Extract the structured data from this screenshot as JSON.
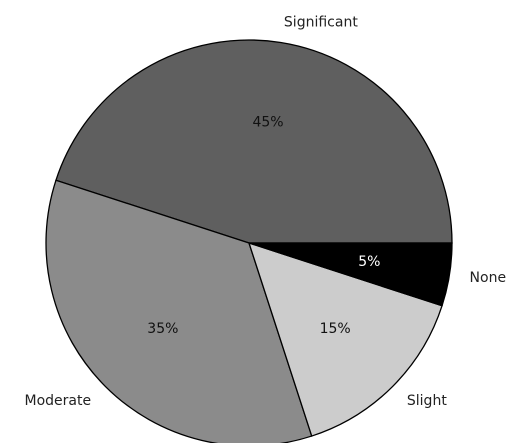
{
  "chart_data": {
    "type": "pie",
    "title": "",
    "categories": [
      "Significant",
      "Moderate",
      "Slight",
      "None"
    ],
    "values": [
      45,
      35,
      15,
      5
    ],
    "value_labels": [
      "45%",
      "35%",
      "15%",
      "5%"
    ],
    "colors": [
      "#5f5f5f",
      "#8b8b8b",
      "#cccccc",
      "#000000"
    ],
    "label_colors": [
      "#111111",
      "#111111",
      "#111111",
      "#ffffff"
    ],
    "start_angle_deg": 0,
    "direction": "counterclockwise",
    "legend": "none"
  }
}
